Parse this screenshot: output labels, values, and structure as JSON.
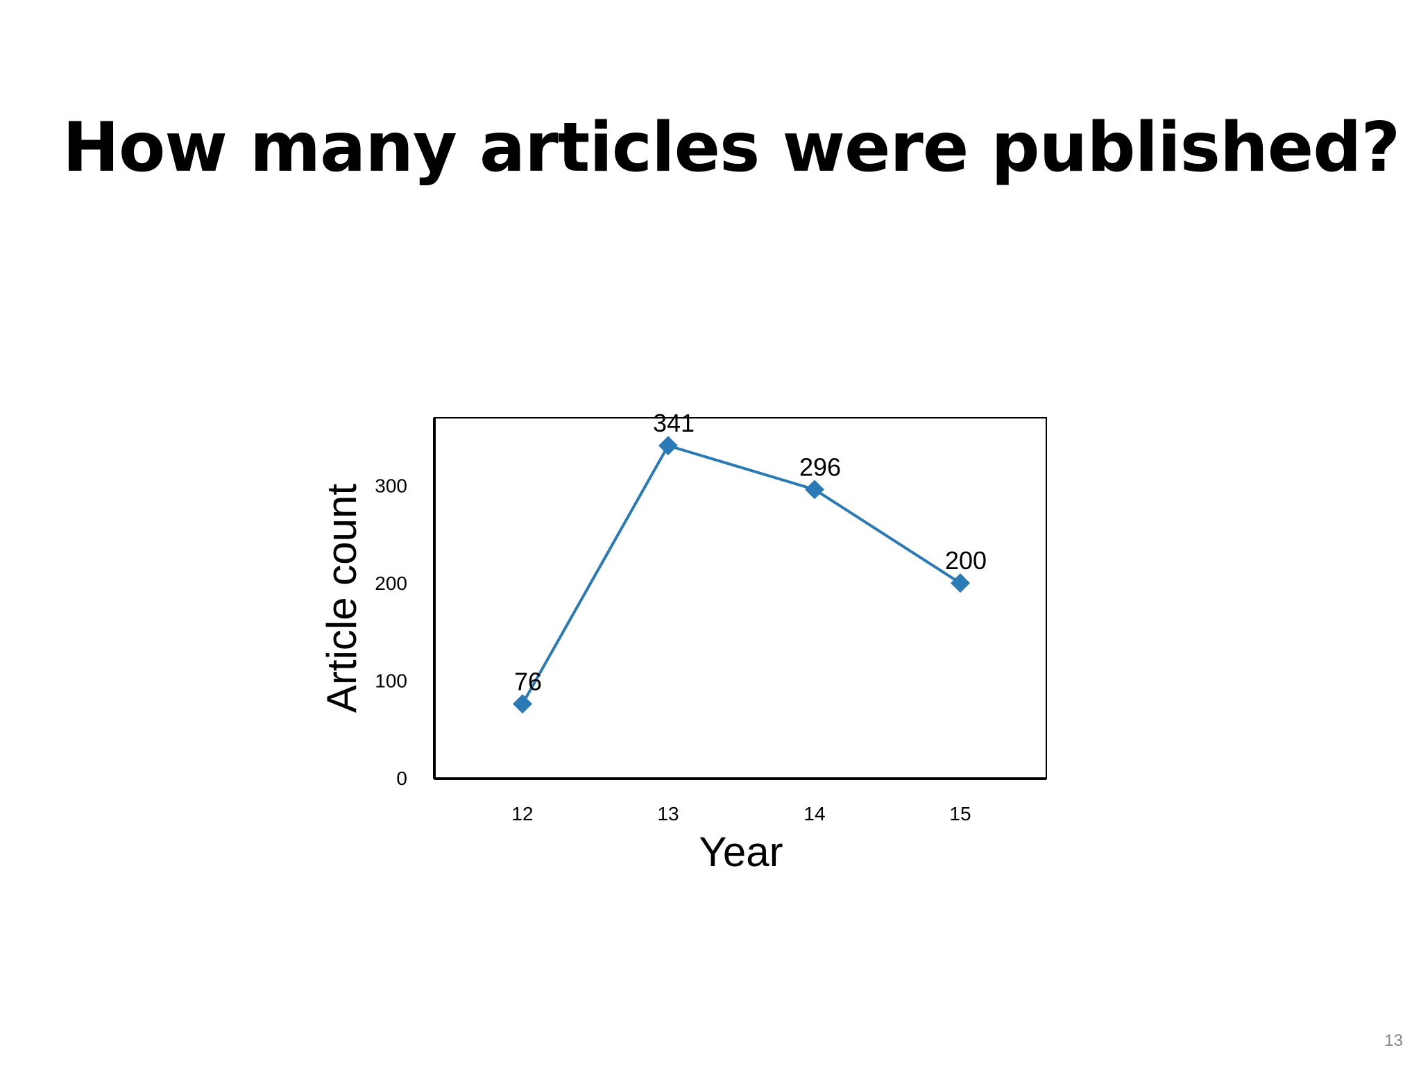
{
  "slide": {
    "title": "How many articles were published?",
    "page_number": "13"
  },
  "colors": {
    "series": "#2a7ab5",
    "axis": "#000000",
    "text": "#000000",
    "page_number": "#888888"
  },
  "chart_data": {
    "type": "line",
    "title": "",
    "xlabel": "Year",
    "ylabel": "Article count",
    "categories": [
      "12",
      "13",
      "14",
      "15"
    ],
    "series": [
      {
        "values": [
          76,
          341,
          296,
          200
        ],
        "marker": "diamond"
      }
    ],
    "data_labels": [
      "76",
      "341",
      "296",
      "200"
    ],
    "yticks": [
      0,
      100,
      200,
      300
    ],
    "ylim": [
      0,
      370
    ],
    "grid": false,
    "legend": "none"
  }
}
